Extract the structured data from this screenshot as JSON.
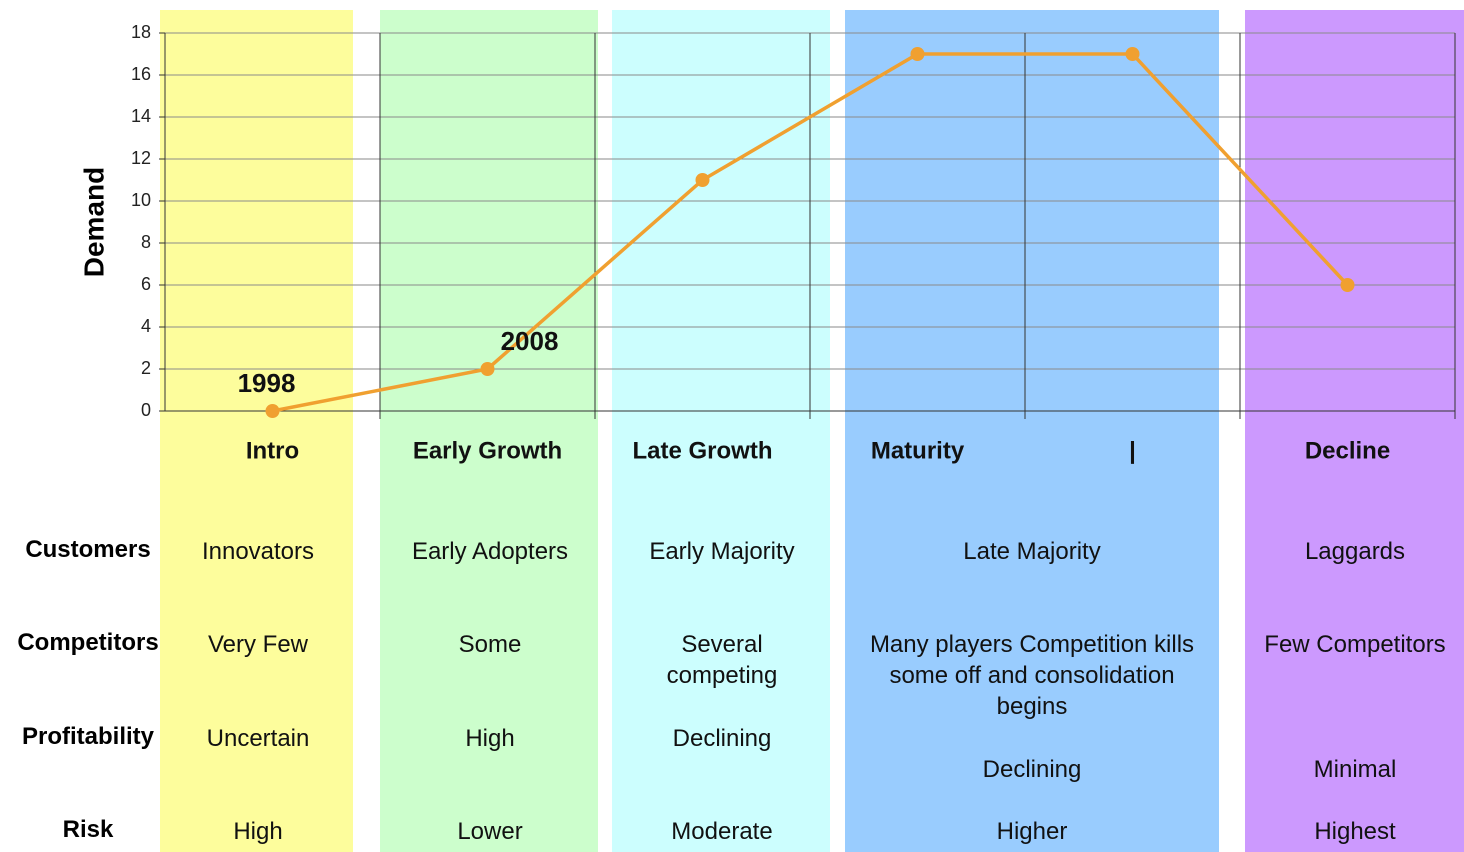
{
  "chart_data": {
    "type": "line",
    "y_label": "Demand",
    "categories": [
      "Intro",
      "Early Growth",
      "Late Growth",
      "Maturity",
      "|",
      "Decline"
    ],
    "values": [
      0,
      2,
      11,
      17,
      17,
      6
    ],
    "color": "#f0a030",
    "ylim": [
      0,
      18
    ],
    "yticks": [
      0,
      2,
      4,
      6,
      8,
      10,
      12,
      14,
      16,
      18
    ],
    "grid": true,
    "annotations": [
      {
        "text": "1998",
        "category": "Intro"
      },
      {
        "text": "2008",
        "category": "Early Growth"
      }
    ]
  },
  "table": {
    "rows": [
      {
        "label": "Customers",
        "cells": [
          "Innovators",
          "Early Adopters",
          "Early Majority",
          "Late Majority",
          "Laggards"
        ]
      },
      {
        "label": "Competitors",
        "cells": [
          "Very Few",
          "Some",
          "Several competing",
          "Many players Competition kills some off and consolidation begins",
          "Few Competitors"
        ]
      },
      {
        "label": "Profitability",
        "cells": [
          "Uncertain",
          "High",
          "Declining",
          "Declining",
          "Minimal"
        ]
      },
      {
        "label": "Risk",
        "cells": [
          "High",
          "Lower",
          "Moderate",
          "Higher",
          "Highest"
        ]
      }
    ]
  }
}
